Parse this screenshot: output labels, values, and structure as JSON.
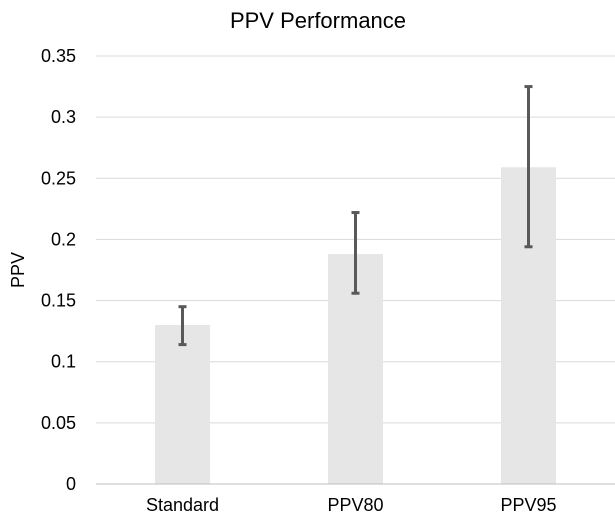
{
  "chart_data": {
    "type": "bar",
    "title": "PPV Performance",
    "xlabel": "",
    "ylabel": "PPV",
    "categories": [
      "Standard",
      "PPV80",
      "PPV95"
    ],
    "values": [
      0.13,
      0.188,
      0.259
    ],
    "error_low": [
      0.114,
      0.156,
      0.194
    ],
    "error_high": [
      0.145,
      0.222,
      0.325
    ],
    "ylim": [
      0,
      0.35
    ],
    "yticks": [
      "0",
      "0.05",
      "0.1",
      "0.15",
      "0.2",
      "0.25",
      "0.3",
      "0.35"
    ],
    "grid": true,
    "legend": "none",
    "colors": {
      "bar": "#e6e6e6",
      "error_bar": "#595959",
      "grid": "#d9d9d9",
      "axis": "#bfbfbf"
    }
  }
}
